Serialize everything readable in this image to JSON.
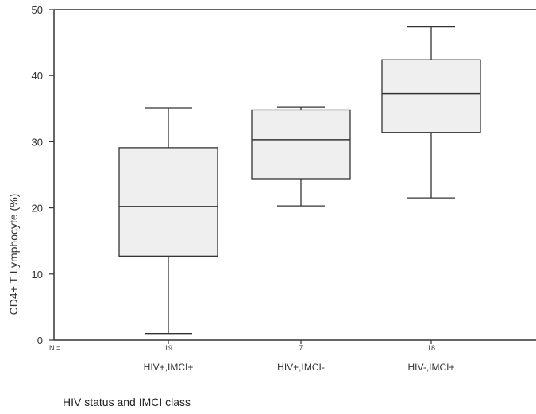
{
  "chart_data": {
    "type": "box",
    "ylabel": "CD4+ T Lymphocyte (%)",
    "xlabel": "HIV status and IMCI class",
    "ylim": [
      0,
      50
    ],
    "yticks": [
      0,
      10,
      20,
      30,
      40,
      50
    ],
    "n_label": "N =",
    "categories": [
      "HIV+,IMCI+",
      "HIV+,IMCI-",
      "HIV-,IMCI+"
    ],
    "n": [
      "19",
      "7",
      "18"
    ],
    "boxes": [
      {
        "min": 1,
        "q1": 12.7,
        "median": 20.2,
        "q3": 29.1,
        "max": 35.1
      },
      {
        "min": 20.3,
        "q1": 24.4,
        "median": 30.3,
        "q3": 34.8,
        "max": 35.2
      },
      {
        "min": 21.5,
        "q1": 31.4,
        "median": 37.3,
        "q3": 42.4,
        "max": 47.4
      }
    ]
  }
}
